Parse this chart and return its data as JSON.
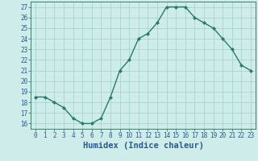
{
  "x": [
    0,
    1,
    2,
    3,
    4,
    5,
    6,
    7,
    8,
    9,
    10,
    11,
    12,
    13,
    14,
    15,
    16,
    17,
    18,
    19,
    20,
    21,
    22,
    23
  ],
  "y": [
    18.5,
    18.5,
    18.0,
    17.5,
    16.5,
    16.0,
    16.0,
    16.5,
    18.5,
    21.0,
    22.0,
    24.0,
    24.5,
    25.5,
    27.0,
    27.0,
    27.0,
    26.0,
    25.5,
    25.0,
    24.0,
    23.0,
    21.5,
    21.0
  ],
  "line_color": "#2a7a6a",
  "marker": "D",
  "marker_size": 2.0,
  "linewidth": 1.0,
  "bg_color": "#ceecea",
  "grid_color": "#aad4d0",
  "xlabel": "Humidex (Indice chaleur)",
  "ylim": [
    15.5,
    27.5
  ],
  "yticks": [
    16,
    17,
    18,
    19,
    20,
    21,
    22,
    23,
    24,
    25,
    26,
    27
  ],
  "xlim": [
    -0.5,
    23.5
  ],
  "xticks": [
    0,
    1,
    2,
    3,
    4,
    5,
    6,
    7,
    8,
    9,
    10,
    11,
    12,
    13,
    14,
    15,
    16,
    17,
    18,
    19,
    20,
    21,
    22,
    23
  ],
  "tick_color": "#2a6a5a",
  "label_color": "#2a5a8a",
  "tick_fontsize": 5.5,
  "xlabel_fontsize": 7.5
}
